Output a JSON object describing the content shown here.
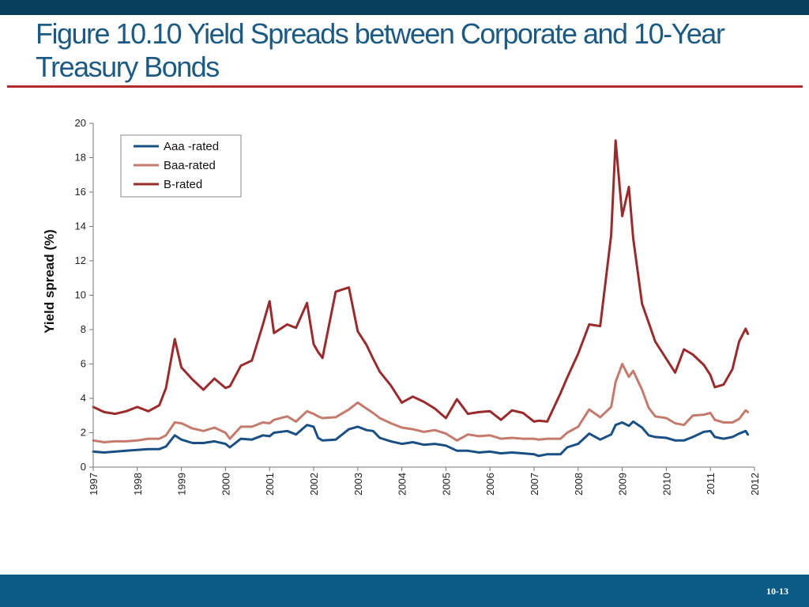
{
  "slide": {
    "title": "Figure 10.10 Yield Spreads between Corporate and 10-Year Treasury Bonds",
    "number": "10-13"
  },
  "colors": {
    "top_bar": "#073e5c",
    "bottom_bar": "#0c5b86",
    "title": "#1c5a84",
    "rule": "#b02a2a"
  },
  "chart_data": {
    "type": "line",
    "title": "",
    "xlabel": "",
    "ylabel": "Yield spread (%)",
    "xlim": [
      1997,
      2012
    ],
    "ylim": [
      0,
      20
    ],
    "x_ticks": [
      "1997",
      "1998",
      "1999",
      "2000",
      "2001",
      "2002",
      "2003",
      "2004",
      "2005",
      "2006",
      "2007",
      "2008",
      "2009",
      "2010",
      "2011",
      "2012"
    ],
    "y_ticks": [
      "0",
      "2",
      "4",
      "6",
      "8",
      "10",
      "12",
      "14",
      "16",
      "18",
      "20"
    ],
    "grid": false,
    "legend_position": "top-left",
    "series": [
      {
        "name": "Aaa -rated",
        "color": "#1a4f86",
        "points": [
          [
            1997,
            0.9
          ],
          [
            1997.25,
            0.85
          ],
          [
            1997.5,
            0.9
          ],
          [
            1997.75,
            0.95
          ],
          [
            1998,
            1.0
          ],
          [
            1998.25,
            1.05
          ],
          [
            1998.5,
            1.05
          ],
          [
            1998.65,
            1.2
          ],
          [
            1998.85,
            1.85
          ],
          [
            1999,
            1.6
          ],
          [
            1999.25,
            1.4
          ],
          [
            1999.5,
            1.4
          ],
          [
            1999.75,
            1.5
          ],
          [
            2000,
            1.35
          ],
          [
            2000.1,
            1.15
          ],
          [
            2000.35,
            1.65
          ],
          [
            2000.6,
            1.6
          ],
          [
            2000.85,
            1.85
          ],
          [
            2001,
            1.8
          ],
          [
            2001.1,
            2.0
          ],
          [
            2001.4,
            2.1
          ],
          [
            2001.6,
            1.9
          ],
          [
            2001.85,
            2.45
          ],
          [
            2002,
            2.35
          ],
          [
            2002.1,
            1.7
          ],
          [
            2002.2,
            1.55
          ],
          [
            2002.5,
            1.6
          ],
          [
            2002.8,
            2.2
          ],
          [
            2003,
            2.35
          ],
          [
            2003.2,
            2.15
          ],
          [
            2003.35,
            2.1
          ],
          [
            2003.5,
            1.7
          ],
          [
            2003.75,
            1.5
          ],
          [
            2004,
            1.35
          ],
          [
            2004.25,
            1.45
          ],
          [
            2004.5,
            1.3
          ],
          [
            2004.75,
            1.35
          ],
          [
            2005,
            1.25
          ],
          [
            2005.25,
            0.95
          ],
          [
            2005.5,
            0.95
          ],
          [
            2005.75,
            0.85
          ],
          [
            2006,
            0.9
          ],
          [
            2006.25,
            0.8
          ],
          [
            2006.5,
            0.85
          ],
          [
            2006.75,
            0.8
          ],
          [
            2007,
            0.75
          ],
          [
            2007.1,
            0.65
          ],
          [
            2007.3,
            0.75
          ],
          [
            2007.6,
            0.75
          ],
          [
            2007.75,
            1.15
          ],
          [
            2008,
            1.35
          ],
          [
            2008.25,
            1.95
          ],
          [
            2008.5,
            1.6
          ],
          [
            2008.75,
            1.9
          ],
          [
            2008.85,
            2.45
          ],
          [
            2009,
            2.6
          ],
          [
            2009.15,
            2.4
          ],
          [
            2009.25,
            2.65
          ],
          [
            2009.45,
            2.3
          ],
          [
            2009.6,
            1.85
          ],
          [
            2009.75,
            1.75
          ],
          [
            2010,
            1.7
          ],
          [
            2010.2,
            1.55
          ],
          [
            2010.4,
            1.55
          ],
          [
            2010.6,
            1.75
          ],
          [
            2010.85,
            2.05
          ],
          [
            2011,
            2.1
          ],
          [
            2011.1,
            1.75
          ],
          [
            2011.3,
            1.65
          ],
          [
            2011.5,
            1.75
          ],
          [
            2011.65,
            1.95
          ],
          [
            2011.8,
            2.1
          ],
          [
            2011.85,
            1.9
          ]
        ]
      },
      {
        "name": "Baa-rated",
        "color": "#c47a6c",
        "points": [
          [
            1997,
            1.55
          ],
          [
            1997.25,
            1.45
          ],
          [
            1997.5,
            1.5
          ],
          [
            1997.75,
            1.5
          ],
          [
            1998,
            1.55
          ],
          [
            1998.25,
            1.65
          ],
          [
            1998.5,
            1.65
          ],
          [
            1998.65,
            1.85
          ],
          [
            1998.85,
            2.6
          ],
          [
            1999,
            2.55
          ],
          [
            1999.25,
            2.25
          ],
          [
            1999.5,
            2.1
          ],
          [
            1999.75,
            2.3
          ],
          [
            2000,
            2.0
          ],
          [
            2000.1,
            1.65
          ],
          [
            2000.35,
            2.35
          ],
          [
            2000.6,
            2.35
          ],
          [
            2000.85,
            2.6
          ],
          [
            2001,
            2.55
          ],
          [
            2001.1,
            2.75
          ],
          [
            2001.4,
            2.95
          ],
          [
            2001.6,
            2.65
          ],
          [
            2001.85,
            3.25
          ],
          [
            2002,
            3.1
          ],
          [
            2002.1,
            2.95
          ],
          [
            2002.2,
            2.85
          ],
          [
            2002.5,
            2.9
          ],
          [
            2002.8,
            3.35
          ],
          [
            2003,
            3.75
          ],
          [
            2003.2,
            3.4
          ],
          [
            2003.35,
            3.15
          ],
          [
            2003.5,
            2.85
          ],
          [
            2003.75,
            2.55
          ],
          [
            2004,
            2.3
          ],
          [
            2004.25,
            2.2
          ],
          [
            2004.5,
            2.05
          ],
          [
            2004.75,
            2.15
          ],
          [
            2005,
            1.95
          ],
          [
            2005.25,
            1.55
          ],
          [
            2005.5,
            1.9
          ],
          [
            2005.75,
            1.8
          ],
          [
            2006,
            1.85
          ],
          [
            2006.25,
            1.65
          ],
          [
            2006.5,
            1.7
          ],
          [
            2006.75,
            1.65
          ],
          [
            2007,
            1.65
          ],
          [
            2007.1,
            1.6
          ],
          [
            2007.3,
            1.65
          ],
          [
            2007.6,
            1.65
          ],
          [
            2007.75,
            2.0
          ],
          [
            2008,
            2.35
          ],
          [
            2008.25,
            3.35
          ],
          [
            2008.5,
            2.9
          ],
          [
            2008.75,
            3.5
          ],
          [
            2008.85,
            4.95
          ],
          [
            2009,
            6.0
          ],
          [
            2009.15,
            5.25
          ],
          [
            2009.25,
            5.6
          ],
          [
            2009.45,
            4.5
          ],
          [
            2009.6,
            3.45
          ],
          [
            2009.75,
            2.95
          ],
          [
            2010,
            2.85
          ],
          [
            2010.2,
            2.55
          ],
          [
            2010.4,
            2.45
          ],
          [
            2010.6,
            3.0
          ],
          [
            2010.85,
            3.05
          ],
          [
            2011,
            3.15
          ],
          [
            2011.1,
            2.75
          ],
          [
            2011.3,
            2.6
          ],
          [
            2011.5,
            2.6
          ],
          [
            2011.65,
            2.8
          ],
          [
            2011.8,
            3.3
          ],
          [
            2011.85,
            3.2
          ]
        ]
      },
      {
        "name": "B-rated",
        "color": "#9b2a2d",
        "points": [
          [
            1997,
            3.5
          ],
          [
            1997.25,
            3.2
          ],
          [
            1997.5,
            3.1
          ],
          [
            1997.75,
            3.25
          ],
          [
            1998,
            3.5
          ],
          [
            1998.25,
            3.25
          ],
          [
            1998.5,
            3.6
          ],
          [
            1998.65,
            4.6
          ],
          [
            1998.85,
            7.45
          ],
          [
            1999,
            5.8
          ],
          [
            1999.25,
            5.1
          ],
          [
            1999.5,
            4.5
          ],
          [
            1999.75,
            5.15
          ],
          [
            2000,
            4.6
          ],
          [
            2000.1,
            4.7
          ],
          [
            2000.35,
            5.9
          ],
          [
            2000.6,
            6.2
          ],
          [
            2000.85,
            8.3
          ],
          [
            2001,
            9.65
          ],
          [
            2001.1,
            7.8
          ],
          [
            2001.4,
            8.3
          ],
          [
            2001.6,
            8.1
          ],
          [
            2001.85,
            9.55
          ],
          [
            2002,
            7.15
          ],
          [
            2002.1,
            6.7
          ],
          [
            2002.2,
            6.35
          ],
          [
            2002.5,
            10.2
          ],
          [
            2002.8,
            10.45
          ],
          [
            2003,
            7.9
          ],
          [
            2003.2,
            7.1
          ],
          [
            2003.35,
            6.3
          ],
          [
            2003.5,
            5.55
          ],
          [
            2003.75,
            4.75
          ],
          [
            2004,
            3.75
          ],
          [
            2004.25,
            4.1
          ],
          [
            2004.5,
            3.8
          ],
          [
            2004.75,
            3.4
          ],
          [
            2005,
            2.85
          ],
          [
            2005.25,
            3.95
          ],
          [
            2005.5,
            3.1
          ],
          [
            2005.75,
            3.2
          ],
          [
            2006,
            3.25
          ],
          [
            2006.25,
            2.75
          ],
          [
            2006.5,
            3.3
          ],
          [
            2006.75,
            3.15
          ],
          [
            2007,
            2.65
          ],
          [
            2007.1,
            2.7
          ],
          [
            2007.3,
            2.65
          ],
          [
            2007.6,
            4.3
          ],
          [
            2007.75,
            5.2
          ],
          [
            2008,
            6.6
          ],
          [
            2008.25,
            8.3
          ],
          [
            2008.5,
            8.2
          ],
          [
            2008.75,
            13.5
          ],
          [
            2008.85,
            19.0
          ],
          [
            2009,
            14.6
          ],
          [
            2009.15,
            16.3
          ],
          [
            2009.25,
            13.3
          ],
          [
            2009.45,
            9.5
          ],
          [
            2009.6,
            8.4
          ],
          [
            2009.75,
            7.3
          ],
          [
            2010,
            6.3
          ],
          [
            2010.2,
            5.5
          ],
          [
            2010.4,
            6.85
          ],
          [
            2010.6,
            6.55
          ],
          [
            2010.85,
            5.95
          ],
          [
            2011,
            5.35
          ],
          [
            2011.1,
            4.65
          ],
          [
            2011.3,
            4.8
          ],
          [
            2011.5,
            5.7
          ],
          [
            2011.65,
            7.3
          ],
          [
            2011.8,
            8.05
          ],
          [
            2011.85,
            7.75
          ]
        ]
      }
    ]
  }
}
